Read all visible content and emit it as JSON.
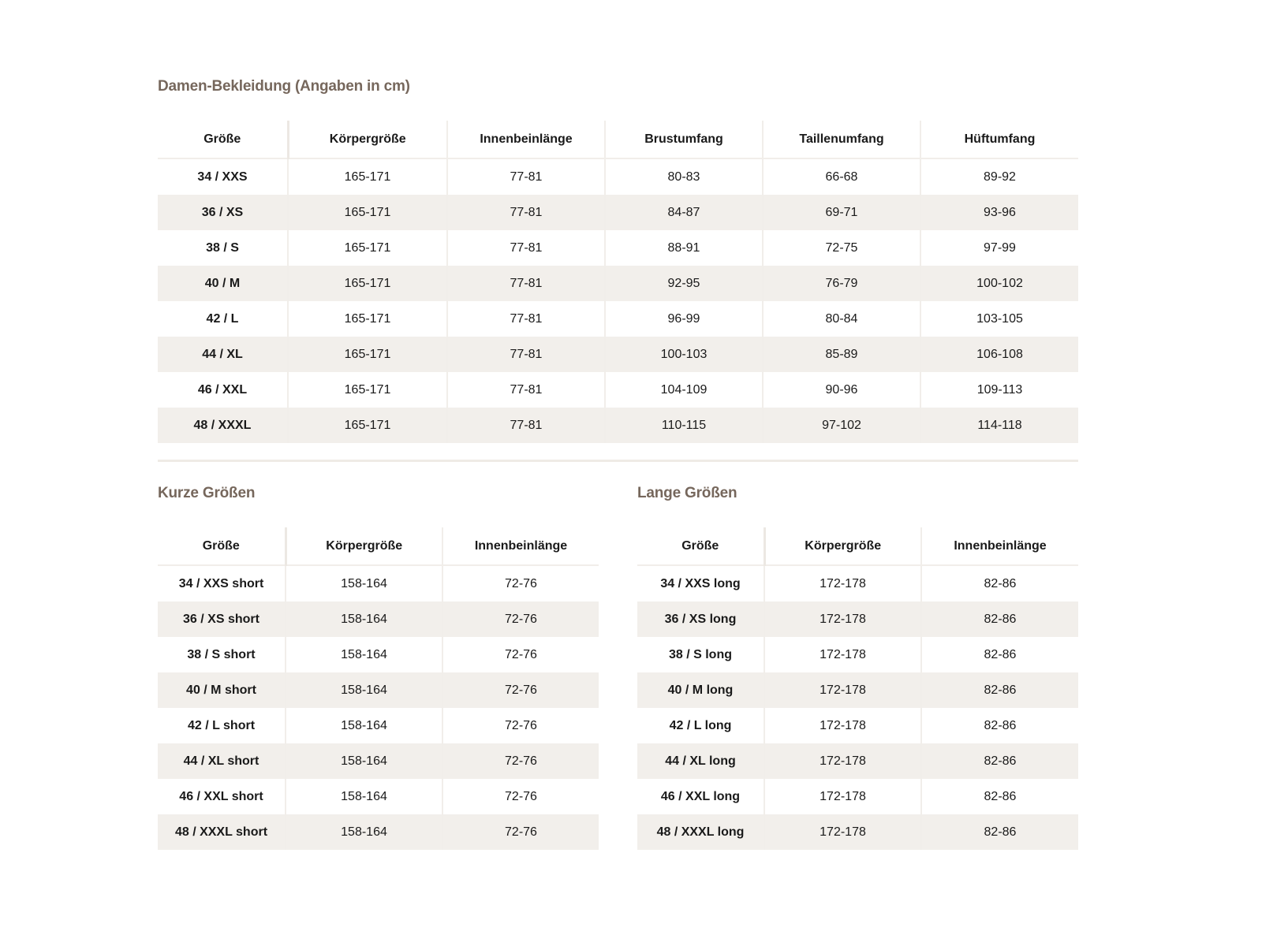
{
  "main": {
    "title": "Damen-Bekleidung (Angaben in cm)",
    "headers": [
      "Größe",
      "Körpergröße",
      "Innenbeinlänge",
      "Brustumfang",
      "Taillenumfang",
      "Hüftumfang"
    ],
    "rows": [
      [
        "34 / XXS",
        "165-171",
        "77-81",
        "80-83",
        "66-68",
        "89-92"
      ],
      [
        "36 / XS",
        "165-171",
        "77-81",
        "84-87",
        "69-71",
        "93-96"
      ],
      [
        "38 / S",
        "165-171",
        "77-81",
        "88-91",
        "72-75",
        "97-99"
      ],
      [
        "40 / M",
        "165-171",
        "77-81",
        "92-95",
        "76-79",
        "100-102"
      ],
      [
        "42 / L",
        "165-171",
        "77-81",
        "96-99",
        "80-84",
        "103-105"
      ],
      [
        "44 / XL",
        "165-171",
        "77-81",
        "100-103",
        "85-89",
        "106-108"
      ],
      [
        "46 / XXL",
        "165-171",
        "77-81",
        "104-109",
        "90-96",
        "109-113"
      ],
      [
        "48 / XXXL",
        "165-171",
        "77-81",
        "110-115",
        "97-102",
        "114-118"
      ]
    ]
  },
  "short": {
    "title": "Kurze Größen",
    "headers": [
      "Größe",
      "Körpergröße",
      "Innenbeinlänge"
    ],
    "rows": [
      [
        "34 / XXS short",
        "158-164",
        "72-76"
      ],
      [
        "36 / XS short",
        "158-164",
        "72-76"
      ],
      [
        "38 / S short",
        "158-164",
        "72-76"
      ],
      [
        "40 / M short",
        "158-164",
        "72-76"
      ],
      [
        "42 / L short",
        "158-164",
        "72-76"
      ],
      [
        "44 / XL short",
        "158-164",
        "72-76"
      ],
      [
        "46 / XXL short",
        "158-164",
        "72-76"
      ],
      [
        "48 / XXXL short",
        "158-164",
        "72-76"
      ]
    ]
  },
  "long": {
    "title": "Lange Größen",
    "headers": [
      "Größe",
      "Körpergröße",
      "Innenbeinlänge"
    ],
    "rows": [
      [
        "34 / XXS long",
        "172-178",
        "82-86"
      ],
      [
        "36 / XS long",
        "172-178",
        "82-86"
      ],
      [
        "38 / S long",
        "172-178",
        "82-86"
      ],
      [
        "40 / M long",
        "172-178",
        "82-86"
      ],
      [
        "42 / L long",
        "172-178",
        "82-86"
      ],
      [
        "44 / XL long",
        "172-178",
        "82-86"
      ],
      [
        "46 / XXL long",
        "172-178",
        "82-86"
      ],
      [
        "48 / XXXL long",
        "172-178",
        "82-86"
      ]
    ]
  },
  "colors": {
    "title": "#76675c",
    "stripe": "#f2efeb"
  }
}
